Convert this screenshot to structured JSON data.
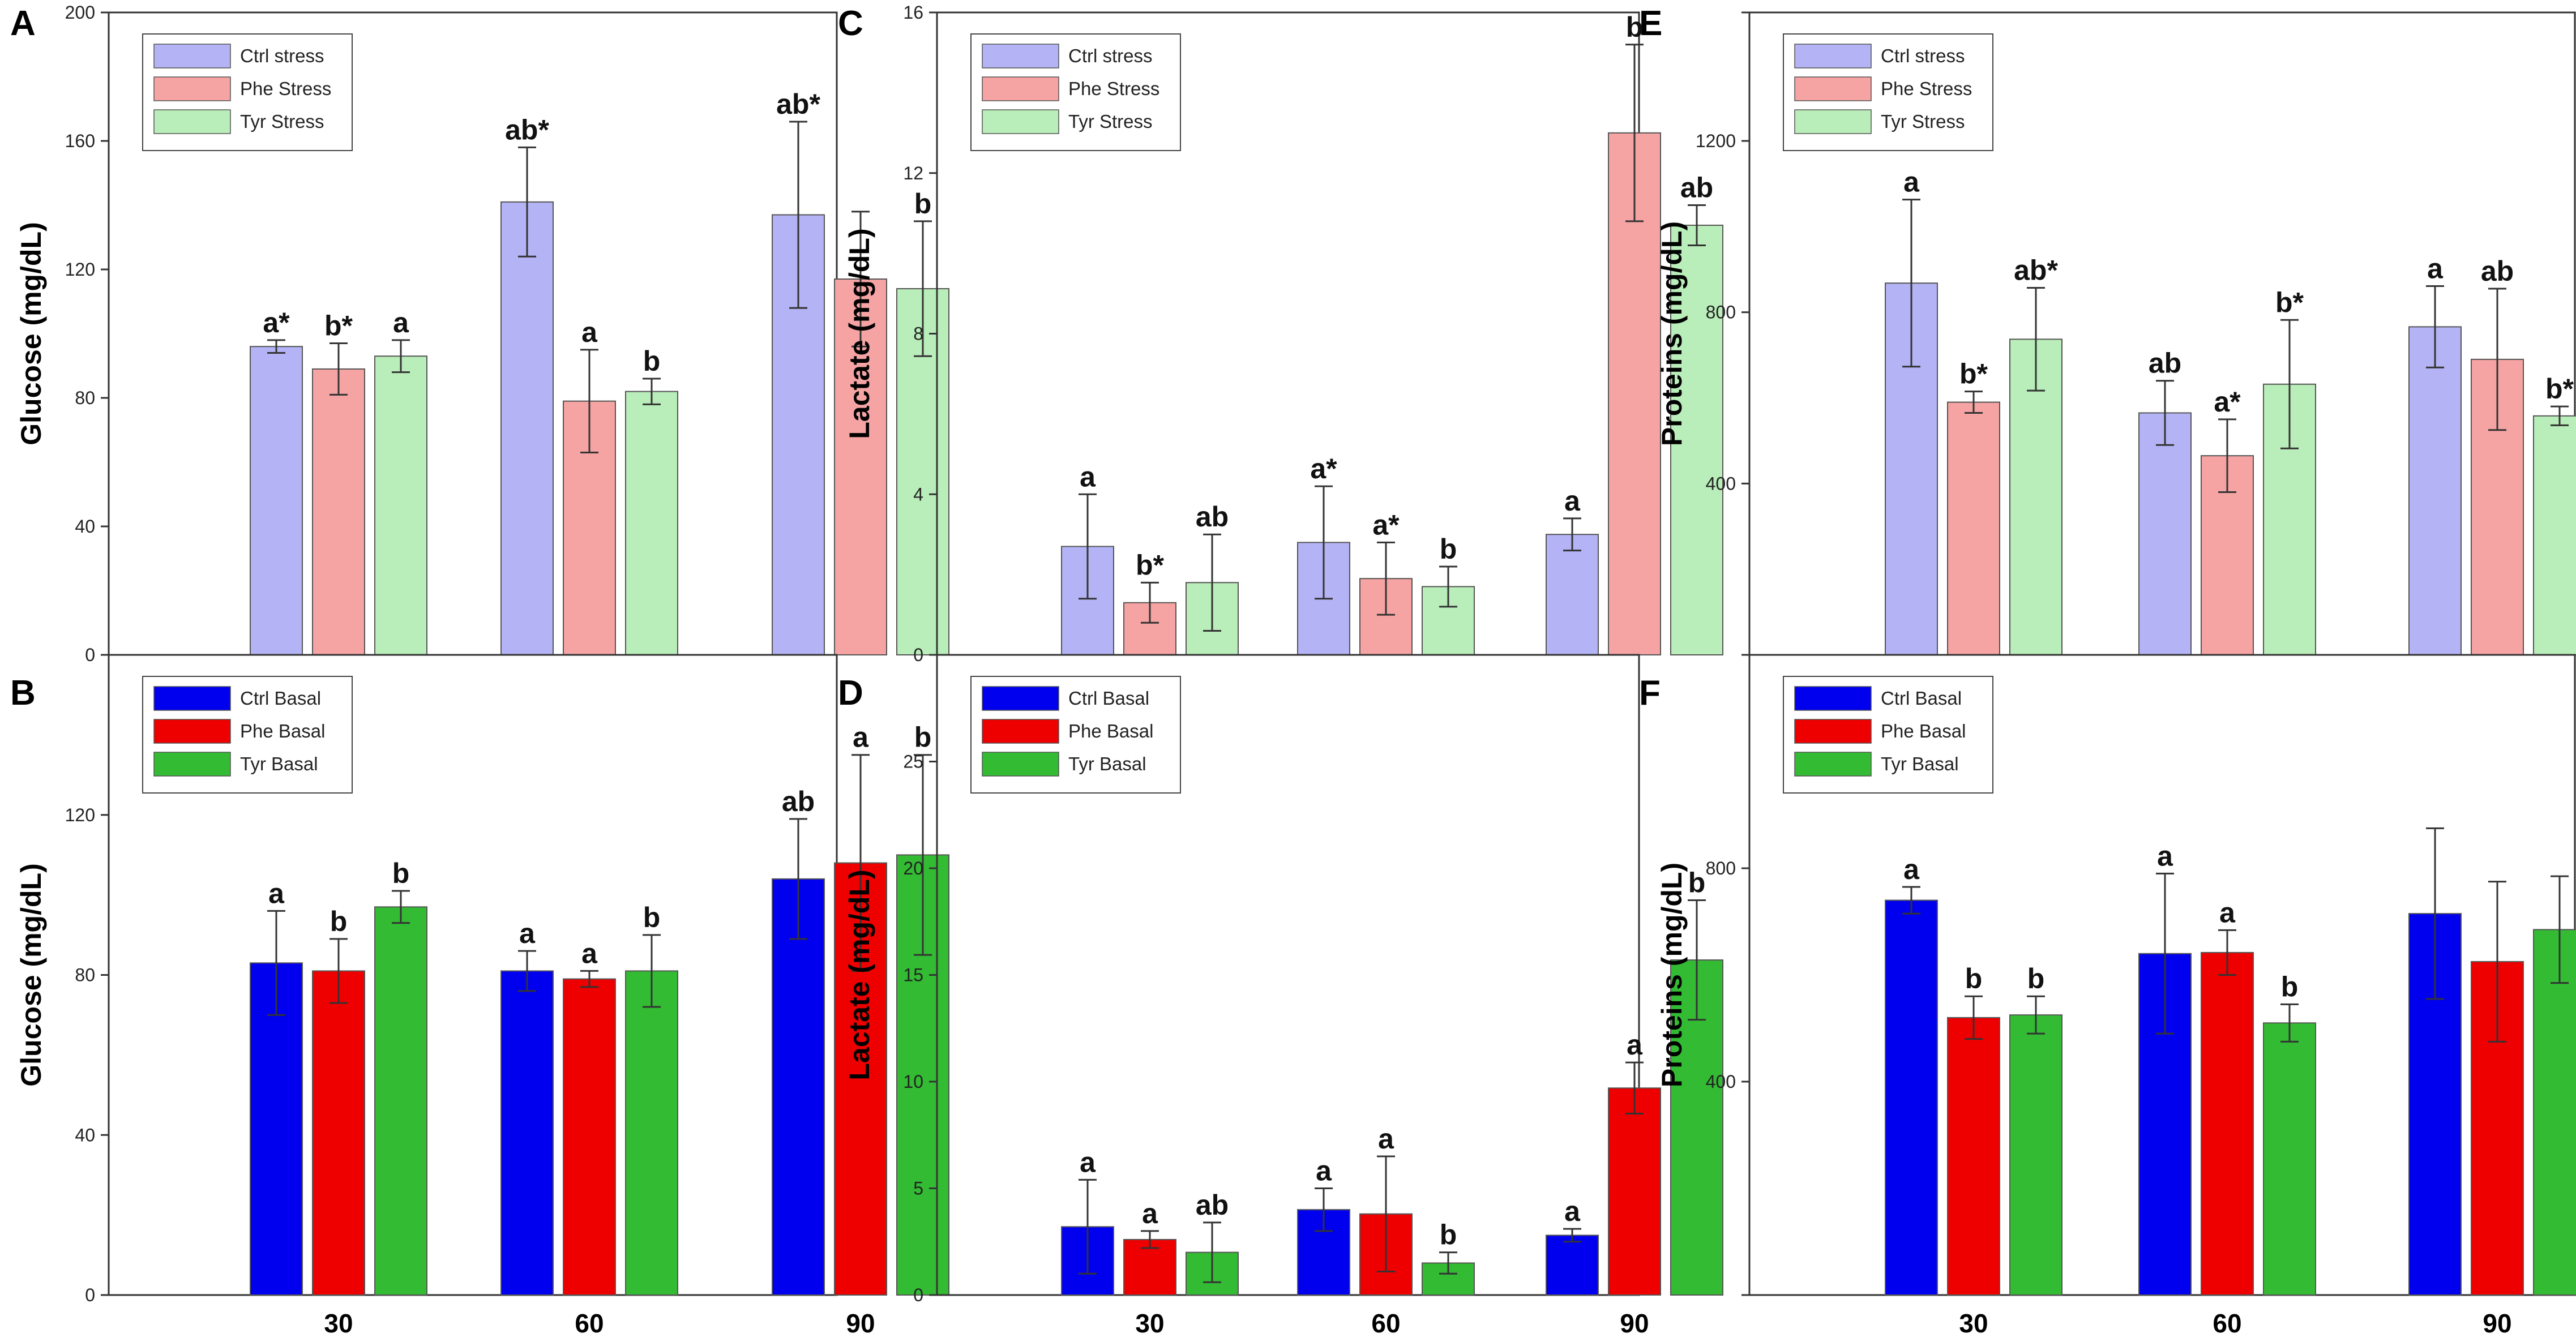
{
  "figure": {
    "background": "#ffffff",
    "axis_color": "#333333",
    "errorbar_color": "#333333"
  },
  "chart_data": [
    {
      "panel": "A",
      "type": "bar",
      "ylabel": "Glucose (mg/dL)",
      "ylim": [
        0,
        200
      ],
      "yticks": [
        "0",
        "40",
        "80",
        "120",
        "160",
        "200"
      ],
      "categories": [
        "30",
        "60",
        "90"
      ],
      "show_xtick_labels": false,
      "legend": "top-left",
      "series": [
        {
          "name": "Ctrl stress",
          "color": "#b3b3f5",
          "values": [
            96,
            141,
            137
          ],
          "errors": [
            2,
            17,
            29
          ],
          "labels": [
            "a*",
            "ab*",
            "ab*"
          ]
        },
        {
          "name": "Phe Stress",
          "color": "#f5a3a3",
          "values": [
            89,
            79,
            117
          ],
          "errors": [
            8,
            16,
            21
          ],
          "labels": [
            "b*",
            "a",
            ""
          ]
        },
        {
          "name": "Tyr Stress",
          "color": "#b9edb9",
          "values": [
            93,
            82,
            114
          ],
          "errors": [
            5,
            4,
            21
          ],
          "labels": [
            "a",
            "b",
            "b"
          ]
        }
      ]
    },
    {
      "panel": "C",
      "type": "bar",
      "ylabel": "Lactate (mg/dL)",
      "ylim": [
        0,
        16
      ],
      "yticks": [
        "0",
        "4",
        "8",
        "12",
        "16"
      ],
      "categories": [
        "30",
        "60",
        "90"
      ],
      "show_xtick_labels": false,
      "legend": "top-left",
      "series": [
        {
          "name": "Ctrl stress",
          "color": "#b3b3f5",
          "values": [
            2.7,
            2.8,
            3.0
          ],
          "errors": [
            1.3,
            1.4,
            0.4
          ],
          "labels": [
            "a",
            "a*",
            "a"
          ]
        },
        {
          "name": "Phe Stress",
          "color": "#f5a3a3",
          "values": [
            1.3,
            1.9,
            13.0
          ],
          "errors": [
            0.5,
            0.9,
            2.2
          ],
          "labels": [
            "b*",
            "a*",
            "b"
          ]
        },
        {
          "name": "Tyr Stress",
          "color": "#b9edb9",
          "values": [
            1.8,
            1.7,
            10.7
          ],
          "errors": [
            1.2,
            0.5,
            0.5
          ],
          "labels": [
            "ab",
            "b",
            "ab"
          ]
        }
      ]
    },
    {
      "panel": "E",
      "type": "bar",
      "ylabel": "Proteins (mg/dL)",
      "ylim": [
        0,
        1500
      ],
      "yticks": [
        "",
        "400",
        "800",
        "1200",
        ""
      ],
      "ytick_values": [
        0,
        400,
        800,
        1200,
        1500
      ],
      "categories": [
        "30",
        "60",
        "90"
      ],
      "show_xtick_labels": false,
      "legend": "top-left",
      "series": [
        {
          "name": "Ctrl stress",
          "color": "#b3b3f5",
          "values": [
            868,
            565,
            766
          ],
          "errors": [
            195,
            75,
            95
          ],
          "labels": [
            "a",
            "ab",
            "a"
          ]
        },
        {
          "name": "Phe Stress",
          "color": "#f5a3a3",
          "values": [
            590,
            465,
            690
          ],
          "errors": [
            25,
            85,
            165
          ],
          "labels": [
            "b*",
            "a*",
            "ab"
          ]
        },
        {
          "name": "Tyr Stress",
          "color": "#b9edb9",
          "values": [
            737,
            632,
            558
          ],
          "errors": [
            120,
            150,
            22
          ],
          "labels": [
            "ab*",
            "b*",
            "b*"
          ]
        }
      ]
    },
    {
      "panel": "B",
      "type": "bar",
      "ylabel": "Glucose (mg/dL)",
      "ylim": [
        0,
        160
      ],
      "yticks": [
        "0",
        "40",
        "80",
        "120",
        ""
      ],
      "ytick_values": [
        0,
        40,
        80,
        120,
        160
      ],
      "categories": [
        "30",
        "60",
        "90"
      ],
      "show_xtick_labels": true,
      "legend": "top-left",
      "series": [
        {
          "name": "Ctrl Basal",
          "color": "#0000ee",
          "values": [
            83,
            81,
            104
          ],
          "errors": [
            13,
            5,
            15
          ],
          "labels": [
            "a",
            "a",
            "ab"
          ]
        },
        {
          "name": "Phe Basal",
          "color": "#ee0000",
          "values": [
            81,
            79,
            108
          ],
          "errors": [
            8,
            2,
            27
          ],
          "labels": [
            "b",
            "a",
            "a"
          ]
        },
        {
          "name": "Tyr Basal",
          "color": "#33bb33",
          "values": [
            97,
            81,
            110
          ],
          "errors": [
            4,
            9,
            25
          ],
          "labels": [
            "b",
            "b",
            "b"
          ]
        }
      ]
    },
    {
      "panel": "D",
      "type": "bar",
      "ylabel": "Lactate (mg/dL)",
      "ylim": [
        0,
        30
      ],
      "yticks": [
        "0",
        "5",
        "10",
        "15",
        "20",
        "25",
        ""
      ],
      "ytick_values": [
        0,
        5,
        10,
        15,
        20,
        25,
        30
      ],
      "categories": [
        "30",
        "60",
        "90"
      ],
      "show_xtick_labels": true,
      "legend": "top-left",
      "series": [
        {
          "name": "Ctrl Basal",
          "color": "#0000ee",
          "values": [
            3.2,
            4.0,
            2.8
          ],
          "errors": [
            2.2,
            1.0,
            0.3
          ],
          "labels": [
            "a",
            "a",
            "a"
          ]
        },
        {
          "name": "Phe Basal",
          "color": "#ee0000",
          "values": [
            2.6,
            3.8,
            9.7
          ],
          "errors": [
            0.4,
            2.7,
            1.2
          ],
          "labels": [
            "a",
            "a",
            "a"
          ]
        },
        {
          "name": "Tyr Basal",
          "color": "#33bb33",
          "values": [
            2.0,
            1.5,
            15.7
          ],
          "errors": [
            1.4,
            0.5,
            2.8
          ],
          "labels": [
            "ab",
            "b",
            "b"
          ]
        }
      ]
    },
    {
      "panel": "F",
      "type": "bar",
      "ylabel": "Proteins (mg/dL)",
      "ylim": [
        0,
        1200
      ],
      "yticks": [
        "",
        "400",
        "800",
        ""
      ],
      "ytick_values": [
        0,
        400,
        800,
        1200
      ],
      "categories": [
        "30",
        "60",
        "90"
      ],
      "show_xtick_labels": true,
      "legend": "top-left",
      "series": [
        {
          "name": "Ctrl Basal",
          "color": "#0000ee",
          "values": [
            740,
            640,
            715
          ],
          "errors": [
            25,
            150,
            160
          ],
          "labels": [
            "a",
            "a",
            ""
          ]
        },
        {
          "name": "Phe Basal",
          "color": "#ee0000",
          "values": [
            520,
            642,
            625
          ],
          "errors": [
            40,
            42,
            150
          ],
          "labels": [
            "b",
            "a",
            ""
          ]
        },
        {
          "name": "Tyr Basal",
          "color": "#33bb33",
          "values": [
            525,
            510,
            685
          ],
          "errors": [
            35,
            35,
            100
          ],
          "labels": [
            "b",
            "b",
            ""
          ]
        }
      ]
    }
  ]
}
